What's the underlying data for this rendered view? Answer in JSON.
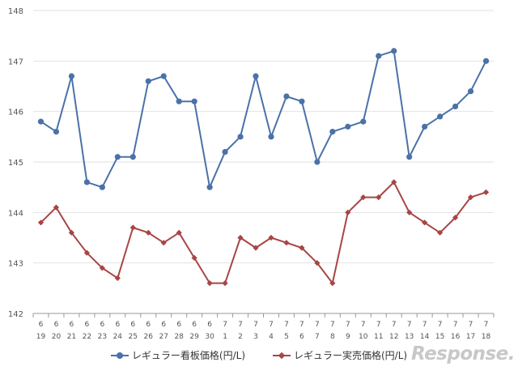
{
  "chart_data": {
    "type": "line",
    "categories": [
      [
        "6",
        "19"
      ],
      [
        "6",
        "20"
      ],
      [
        "6",
        "21"
      ],
      [
        "6",
        "22"
      ],
      [
        "6",
        "23"
      ],
      [
        "6",
        "24"
      ],
      [
        "6",
        "25"
      ],
      [
        "6",
        "26"
      ],
      [
        "6",
        "27"
      ],
      [
        "6",
        "28"
      ],
      [
        "6",
        "29"
      ],
      [
        "6",
        "30"
      ],
      [
        "7",
        "1"
      ],
      [
        "7",
        "2"
      ],
      [
        "7",
        "3"
      ],
      [
        "7",
        "4"
      ],
      [
        "7",
        "5"
      ],
      [
        "7",
        "6"
      ],
      [
        "7",
        "7"
      ],
      [
        "7",
        "8"
      ],
      [
        "7",
        "9"
      ],
      [
        "7",
        "10"
      ],
      [
        "7",
        "11"
      ],
      [
        "7",
        "12"
      ],
      [
        "7",
        "13"
      ],
      [
        "7",
        "14"
      ],
      [
        "7",
        "15"
      ],
      [
        "7",
        "16"
      ],
      [
        "7",
        "17"
      ],
      [
        "7",
        "18"
      ]
    ],
    "series": [
      {
        "name": "レギュラー看板価格(円/L)",
        "color": "#4a72a8",
        "marker": "circle",
        "values": [
          145.8,
          145.6,
          146.7,
          144.6,
          144.5,
          145.1,
          145.1,
          146.6,
          146.7,
          146.2,
          146.2,
          144.5,
          145.2,
          145.5,
          146.7,
          145.5,
          146.3,
          146.2,
          145.0,
          145.6,
          145.7,
          145.8,
          147.1,
          147.2,
          145.1,
          145.7,
          145.9,
          146.1,
          146.4,
          147.0
        ]
      },
      {
        "name": "レギュラー実売価格(円/L)",
        "color": "#a84545",
        "marker": "diamond",
        "values": [
          143.8,
          144.1,
          143.6,
          143.2,
          142.9,
          142.7,
          143.7,
          143.6,
          143.4,
          143.6,
          143.1,
          142.6,
          142.6,
          143.5,
          143.3,
          143.5,
          143.4,
          143.3,
          143.0,
          142.6,
          144.0,
          144.3,
          144.3,
          144.6,
          144.0,
          143.8,
          143.6,
          143.9,
          144.3,
          144.4
        ]
      }
    ],
    "yticks": [
      "142",
      "143",
      "144",
      "145",
      "146",
      "147",
      "148"
    ],
    "ylim": [
      142,
      148
    ],
    "grid": true,
    "legend_position": "bottom"
  },
  "watermark": "Response."
}
